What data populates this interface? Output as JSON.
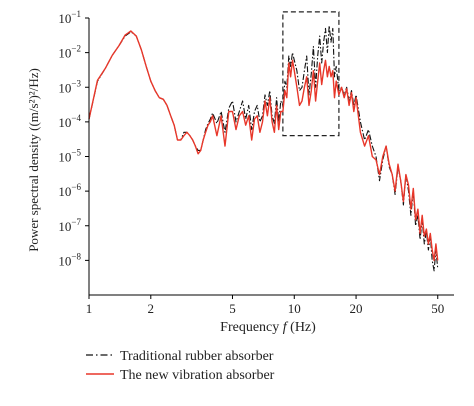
{
  "chart_data": {
    "type": "line",
    "x_scale": "log",
    "y_scale": "log",
    "xlim": [
      1,
      60
    ],
    "ylim": [
      1e-09,
      0.1
    ],
    "xlabel_prefix": "Frequency ",
    "xlabel_var": "f",
    "xlabel_suffix": " (Hz)",
    "ylabel": "Power spectral density ((m/s²)²/Hz)",
    "x_ticks": [
      {
        "value": 1,
        "label": "1"
      },
      {
        "value": 2,
        "label": "2"
      },
      {
        "value": 5,
        "label": "5"
      },
      {
        "value": 10,
        "label": "10"
      },
      {
        "value": 20,
        "label": "20"
      },
      {
        "value": 50,
        "label": "50"
      }
    ],
    "y_ticks": [
      {
        "exp": -8,
        "label_base": "10",
        "label_exp": "−8"
      },
      {
        "exp": -7,
        "label_base": "10",
        "label_exp": "−7"
      },
      {
        "exp": -6,
        "label_base": "10",
        "label_exp": "−6"
      },
      {
        "exp": -5,
        "label_base": "10",
        "label_exp": "−5"
      },
      {
        "exp": -4,
        "label_base": "10",
        "label_exp": "−4"
      },
      {
        "exp": -3,
        "label_base": "10",
        "label_exp": "−3"
      },
      {
        "exp": -2,
        "label_base": "10",
        "label_exp": "−2"
      },
      {
        "exp": -1,
        "label_base": "10",
        "label_exp": "−1"
      }
    ],
    "highlight_box": {
      "x_range": [
        8.8,
        16.5
      ],
      "y_range": [
        4e-05,
        0.15
      ]
    },
    "legend_placement": "bottom-left, below plot",
    "series": [
      {
        "name": "Traditional rubber absorber",
        "color": "#111111",
        "style": "dash-dot",
        "x": [
          1,
          1.1,
          1.2,
          1.3,
          1.4,
          1.5,
          1.6,
          1.7,
          1.8,
          1.9,
          2,
          2.1,
          2.2,
          2.3,
          2.4,
          2.5,
          2.6,
          2.7,
          2.8,
          2.9,
          3,
          3.1,
          3.2,
          3.3,
          3.4,
          3.5,
          3.6,
          3.7,
          3.8,
          3.9,
          4,
          4.2,
          4.4,
          4.6,
          4.8,
          5,
          5.2,
          5.4,
          5.6,
          5.8,
          6,
          6.2,
          6.4,
          6.6,
          6.8,
          7,
          7.2,
          7.4,
          7.6,
          7.8,
          8,
          8.2,
          8.4,
          8.6,
          8.8,
          9,
          9.2,
          9.4,
          9.6,
          9.8,
          10,
          10.3,
          10.6,
          10.9,
          11.2,
          11.5,
          11.8,
          12.1,
          12.4,
          12.7,
          13,
          13.3,
          13.6,
          13.9,
          14.2,
          14.5,
          14.8,
          15.1,
          15.4,
          15.7,
          16,
          16.5,
          17,
          17.5,
          18,
          18.5,
          19,
          19.5,
          20,
          21,
          22,
          23,
          24,
          25,
          26,
          27,
          28,
          29,
          30,
          31,
          32,
          33,
          34,
          35,
          36,
          37,
          38,
          39,
          40,
          41,
          42,
          43,
          44,
          45,
          46,
          47,
          48,
          49,
          50
        ],
        "y": [
          0.00012,
          0.0015,
          0.0035,
          0.0085,
          0.016,
          0.03,
          0.04,
          0.03,
          0.012,
          0.004,
          0.0015,
          0.0008,
          0.0005,
          0.00045,
          0.0003,
          0.00015,
          8e-05,
          3e-05,
          3e-05,
          5e-05,
          5e-05,
          4e-05,
          3e-05,
          2e-05,
          1.5e-05,
          1.5e-05,
          3e-05,
          6e-05,
          9e-05,
          0.00012,
          0.00018,
          9e-05,
          0.0002,
          5e-05,
          0.00025,
          0.0004,
          0.0001,
          0.0002,
          0.0004,
          0.00012,
          0.0003,
          6e-05,
          0.0002,
          0.0003,
          0.0001,
          0.00015,
          0.0006,
          0.0003,
          0.0008,
          0.00015,
          9e-05,
          0.0005,
          0.0001,
          0.0004,
          0.0003,
          0.0015,
          0.001,
          0.008,
          0.004,
          0.01,
          0.006,
          0.003,
          0.0008,
          0.001,
          0.003,
          0.008,
          0.0006,
          0.0025,
          0.015,
          0.001,
          0.008,
          0.03,
          0.005,
          0.02,
          0.05,
          0.01,
          0.06,
          0.02,
          0.05,
          0.002,
          0.004,
          0.0008,
          0.001,
          0.0006,
          0.001,
          0.0004,
          0.0008,
          0.0003,
          0.0006,
          0.0001,
          3e-05,
          6e-05,
          2e-05,
          1e-05,
          2e-06,
          8e-06,
          2e-05,
          5e-06,
          3e-06,
          8e-07,
          5e-06,
          2e-06,
          4e-07,
          3e-06,
          1e-06,
          2e-07,
          1e-06,
          1e-07,
          2e-07,
          4e-08,
          1.5e-07,
          3e-08,
          7e-08,
          2e-08,
          5e-08,
          1e-08,
          5e-09,
          2e-08,
          6e-09
        ]
      },
      {
        "name": "The new vibration absorber",
        "color": "#e8372a",
        "style": "solid",
        "x": [
          1,
          1.1,
          1.2,
          1.3,
          1.4,
          1.5,
          1.6,
          1.7,
          1.8,
          1.9,
          2,
          2.1,
          2.2,
          2.3,
          2.4,
          2.5,
          2.6,
          2.7,
          2.8,
          2.9,
          3,
          3.1,
          3.2,
          3.3,
          3.4,
          3.5,
          3.6,
          3.7,
          3.8,
          3.9,
          4,
          4.2,
          4.4,
          4.6,
          4.8,
          5,
          5.2,
          5.4,
          5.6,
          5.8,
          6,
          6.2,
          6.4,
          6.6,
          6.8,
          7,
          7.2,
          7.4,
          7.6,
          7.8,
          8,
          8.2,
          8.4,
          8.6,
          8.8,
          9,
          9.2,
          9.4,
          9.6,
          9.8,
          10,
          10.3,
          10.6,
          10.9,
          11.2,
          11.5,
          11.8,
          12.1,
          12.4,
          12.7,
          13,
          13.3,
          13.6,
          13.9,
          14.2,
          14.5,
          14.8,
          15.1,
          15.4,
          15.7,
          16,
          16.5,
          17,
          17.5,
          18,
          18.5,
          19,
          19.5,
          20,
          21,
          22,
          23,
          24,
          25,
          26,
          27,
          28,
          29,
          30,
          31,
          32,
          33,
          34,
          35,
          36,
          37,
          38,
          39,
          40,
          41,
          42,
          43,
          44,
          45,
          46,
          47,
          48,
          49,
          50
        ],
        "y": [
          0.00012,
          0.0016,
          0.0035,
          0.0085,
          0.016,
          0.032,
          0.042,
          0.03,
          0.012,
          0.004,
          0.0015,
          0.0008,
          0.0005,
          0.00045,
          0.0003,
          0.00015,
          8e-05,
          3e-05,
          3e-05,
          4e-05,
          5e-05,
          4e-05,
          3e-05,
          2e-05,
          1.2e-05,
          1.5e-05,
          3e-05,
          5e-05,
          8e-05,
          0.0001,
          0.00015,
          4e-05,
          0.00015,
          2e-05,
          0.0002,
          0.0002,
          6e-05,
          0.00015,
          0.0002,
          8e-05,
          0.00015,
          3e-05,
          0.00012,
          0.00015,
          5e-05,
          0.0001,
          0.0004,
          0.00015,
          0.0005,
          0.0001,
          5e-05,
          0.0003,
          6e-05,
          0.0002,
          0.0002,
          0.0008,
          0.0005,
          0.005,
          0.002,
          0.006,
          0.003,
          0.001,
          0.0003,
          0.0004,
          0.001,
          0.002,
          0.0003,
          0.0008,
          0.003,
          0.0004,
          0.0015,
          0.005,
          0.0012,
          0.003,
          0.006,
          0.002,
          0.004,
          0.002,
          0.003,
          0.0005,
          0.0015,
          0.0006,
          0.001,
          0.0005,
          0.0009,
          0.0003,
          0.0007,
          0.0002,
          0.0005,
          5e-05,
          2e-05,
          4e-05,
          1e-05,
          8e-06,
          3e-06,
          1e-05,
          2e-05,
          6e-06,
          3e-06,
          1e-06,
          6e-06,
          2e-06,
          5e-07,
          3e-06,
          1.5e-06,
          3e-07,
          1.2e-06,
          1.5e-07,
          3e-07,
          6e-08,
          2e-07,
          5e-08,
          8e-08,
          3e-08,
          6e-08,
          2e-08,
          1e-08,
          3e-08,
          1e-08
        ]
      }
    ]
  }
}
